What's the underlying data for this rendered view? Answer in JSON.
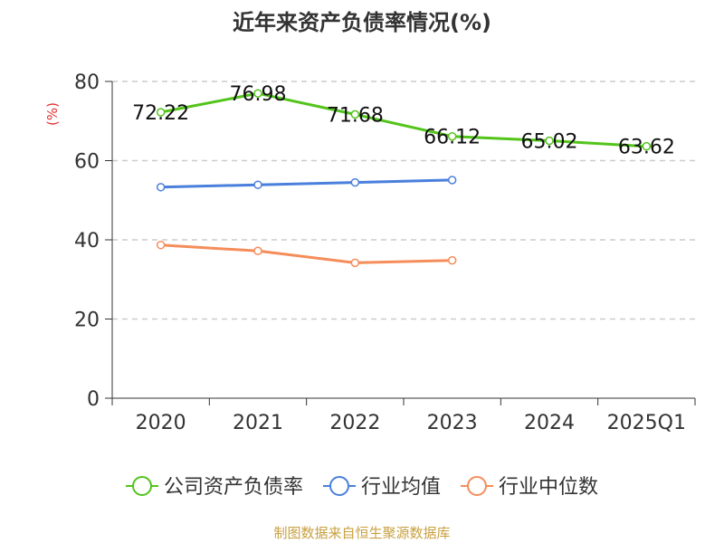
{
  "chart_data": {
    "type": "line",
    "title": "近年来资产负债率情况(%)",
    "ylabel": "(%)",
    "xlabel": "",
    "categories": [
      "2020",
      "2021",
      "2022",
      "2023",
      "2024",
      "2025Q1"
    ],
    "ylim": [
      0,
      80
    ],
    "yticks": [
      0,
      20,
      40,
      60,
      80
    ],
    "grid": true,
    "legend_position": "bottom",
    "series": [
      {
        "name": "公司资产负债率",
        "color": "#52c41a",
        "values": [
          72.22,
          76.98,
          71.68,
          66.12,
          65.02,
          63.62
        ],
        "labels": [
          "72.22",
          "76.98",
          "71.68",
          "66.12",
          "65.02",
          "63.62"
        ]
      },
      {
        "name": "行业均值",
        "color": "#4a7fdc",
        "values": [
          53.3,
          53.9,
          54.5,
          55.1,
          null,
          null
        ]
      },
      {
        "name": "行业中位数",
        "color": "#f58d5a",
        "values": [
          38.7,
          37.2,
          34.2,
          34.8,
          null,
          null
        ]
      }
    ],
    "source": "制图数据来自恒生聚源数据库"
  }
}
